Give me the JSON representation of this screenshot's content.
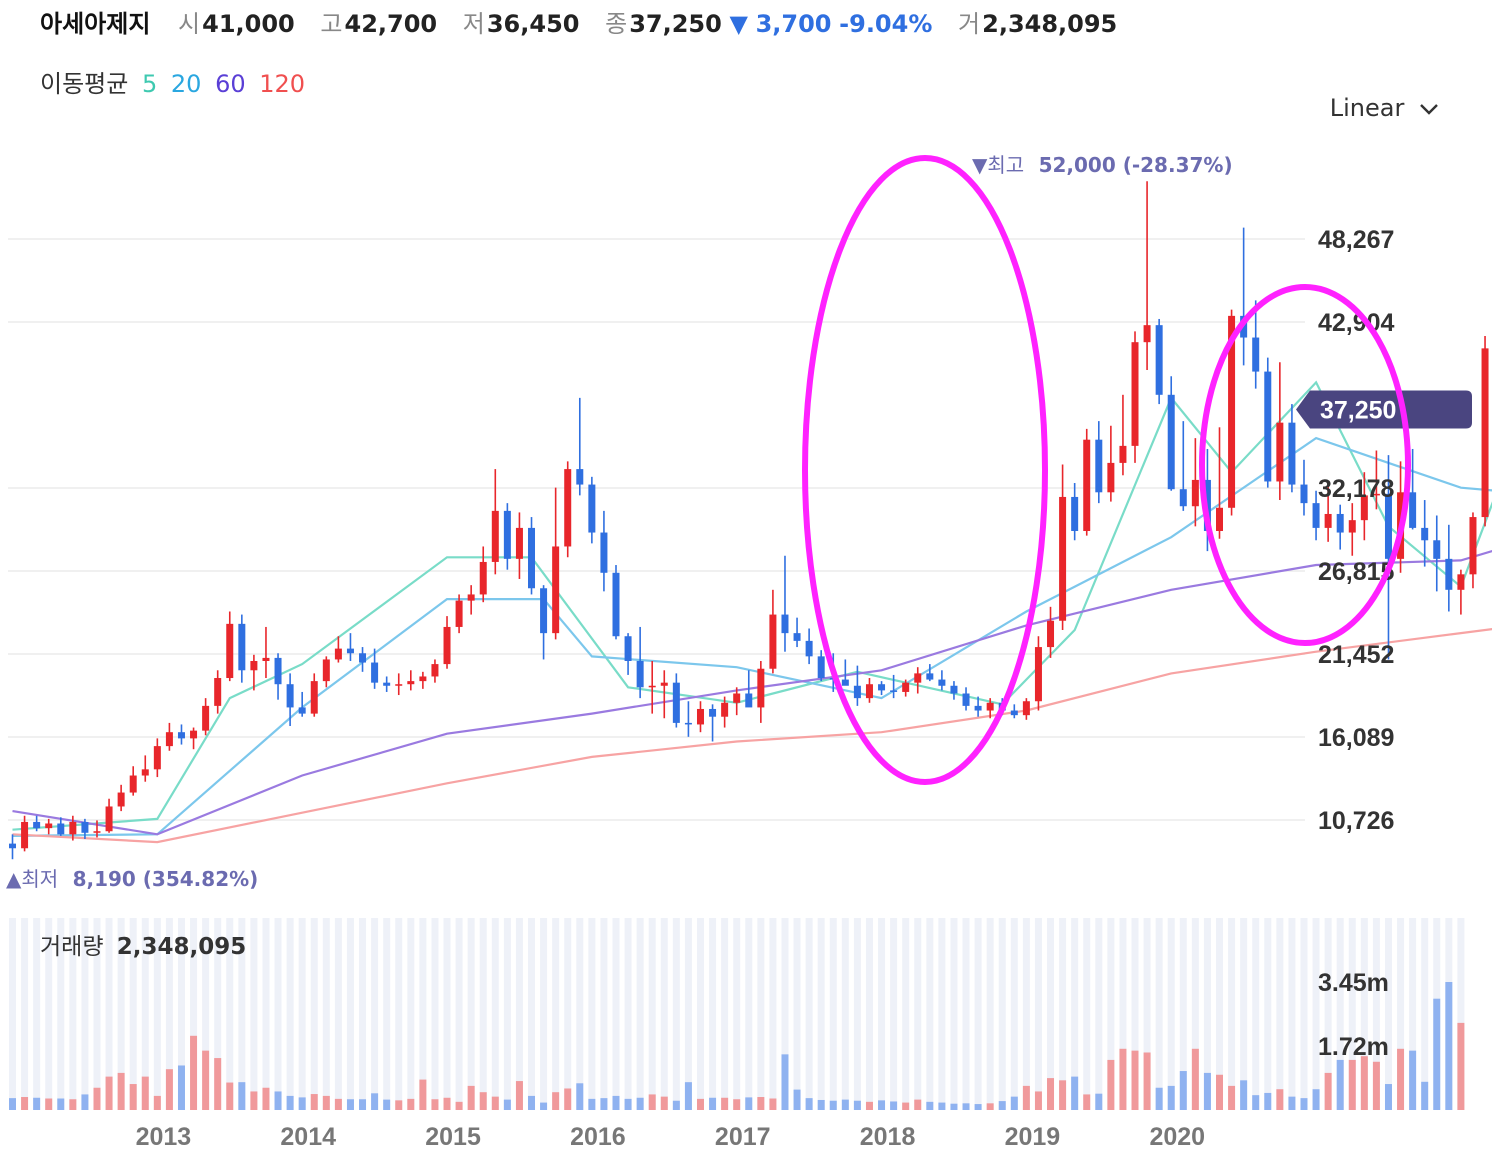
{
  "header": {
    "name": "아세아제지",
    "open_label": "시",
    "open": "41,000",
    "high_label": "고",
    "high": "42,700",
    "low_label": "저",
    "low": "36,450",
    "close_label": "종",
    "close": "37,250",
    "change_arrow": "▼",
    "change": "3,700",
    "change_pct": "-9.04%",
    "volume_label": "거",
    "volume": "2,348,095"
  },
  "moving_average": {
    "label": "이동평균",
    "periods": [
      "5",
      "20",
      "60",
      "120"
    ],
    "colors": [
      "#3ec9b0",
      "#2aa7e0",
      "#5a3fd6",
      "#f04f4f"
    ]
  },
  "scale_selector": {
    "label": "Linear",
    "icon": "chevron-down-icon"
  },
  "annotations": {
    "high_marker": {
      "arrow": "▼",
      "label": "최고",
      "value": "52,000 (-28.37%)"
    },
    "low_marker": {
      "arrow": "▲",
      "label": "최저",
      "value": "8,190 (354.82%)"
    },
    "current_price_tag": "37,250"
  },
  "volume_panel": {
    "label": "거래량",
    "value": "2,348,095"
  },
  "colors": {
    "up": "#e8262b",
    "down": "#2f6fe0",
    "vol_up": "#f0999b",
    "vol_down": "#8fb2f0",
    "highlight": "#ff22ff",
    "tag": "#4a4580"
  },
  "chart_data": {
    "type": "candlestick",
    "interval": "monthly",
    "y_ticks": [
      "48,267",
      "42,904",
      "37,250",
      "32,178",
      "26,815",
      "21,452",
      "16,089",
      "10,726"
    ],
    "y_tick_values": [
      48267,
      42904,
      32178,
      26815,
      21452,
      16089,
      10726
    ],
    "volume_ticks": [
      "3.45m",
      "1.72m"
    ],
    "volume_tick_values": [
      3450000,
      1720000
    ],
    "x_ticks": [
      "2013",
      "2014",
      "2015",
      "2016",
      "2017",
      "2018",
      "2019",
      "2020"
    ],
    "x_tick_positions": [
      12.5,
      24.5,
      36.5,
      48.5,
      60.5,
      72.5,
      84.5,
      96.5
    ],
    "candles": [
      [
        9200,
        9800,
        8190,
        8900
      ],
      [
        8900,
        11000,
        8700,
        10600
      ],
      [
        10600,
        11000,
        10000,
        10200
      ],
      [
        10200,
        10800,
        9800,
        10500
      ],
      [
        10500,
        10900,
        9700,
        9800
      ],
      [
        9800,
        11000,
        9400,
        10600
      ],
      [
        10600,
        10800,
        9500,
        9900
      ],
      [
        9900,
        10700,
        9600,
        10000
      ],
      [
        10000,
        12100,
        9900,
        11600
      ],
      [
        11600,
        13000,
        11300,
        12500
      ],
      [
        12500,
        14200,
        12300,
        13600
      ],
      [
        13600,
        14900,
        13200,
        14000
      ],
      [
        14000,
        16000,
        13500,
        15500
      ],
      [
        15500,
        17000,
        15200,
        16400
      ],
      [
        16400,
        16900,
        15600,
        16000
      ],
      [
        16000,
        16700,
        15300,
        16500
      ],
      [
        16500,
        18600,
        16200,
        18100
      ],
      [
        18100,
        20400,
        17600,
        19900
      ],
      [
        19900,
        24200,
        19700,
        23400
      ],
      [
        23400,
        24000,
        19600,
        20400
      ],
      [
        20400,
        21400,
        19100,
        21000
      ],
      [
        21000,
        23200,
        19900,
        21200
      ],
      [
        21200,
        21500,
        18500,
        19500
      ],
      [
        19500,
        20200,
        16800,
        18000
      ],
      [
        18000,
        19000,
        17400,
        17600
      ],
      [
        17600,
        20200,
        17400,
        19700
      ],
      [
        19700,
        21300,
        19300,
        21100
      ],
      [
        21100,
        22600,
        20900,
        21800
      ],
      [
        21800,
        22800,
        21000,
        21500
      ],
      [
        21500,
        21900,
        20300,
        20900
      ],
      [
        20900,
        21800,
        19200,
        19600
      ],
      [
        19600,
        20000,
        19000,
        19400
      ],
      [
        19400,
        20200,
        18800,
        19500
      ],
      [
        19500,
        20400,
        19100,
        19700
      ],
      [
        19700,
        20300,
        19200,
        20000
      ],
      [
        20000,
        21100,
        19600,
        20800
      ],
      [
        20800,
        23900,
        20500,
        23200
      ],
      [
        23200,
        25300,
        22800,
        24900
      ],
      [
        24900,
        25900,
        24000,
        25300
      ],
      [
        25300,
        28400,
        24800,
        27400
      ],
      [
        27400,
        33400,
        26600,
        30700
      ],
      [
        30700,
        31200,
        26900,
        27600
      ],
      [
        27600,
        30600,
        26300,
        29600
      ],
      [
        29600,
        30300,
        25300,
        25700
      ],
      [
        25700,
        25900,
        21100,
        22800
      ],
      [
        22800,
        32200,
        22400,
        28400
      ],
      [
        28400,
        33900,
        27700,
        33400
      ],
      [
        33400,
        38000,
        31700,
        32400
      ],
      [
        32400,
        32900,
        28600,
        29300
      ],
      [
        29300,
        30700,
        25500,
        26700
      ],
      [
        26700,
        27200,
        22400,
        22600
      ],
      [
        22600,
        22800,
        20100,
        21000
      ],
      [
        21000,
        23200,
        18600,
        19300
      ],
      [
        19300,
        21000,
        17600,
        19400
      ],
      [
        19400,
        20400,
        17300,
        19600
      ],
      [
        19600,
        20200,
        16700,
        17000
      ],
      [
        17000,
        18400,
        16100,
        16900
      ],
      [
        16900,
        18400,
        16400,
        17900
      ],
      [
        17900,
        18200,
        15800,
        17400
      ],
      [
        17400,
        18700,
        16700,
        18300
      ],
      [
        18300,
        19300,
        17500,
        18900
      ],
      [
        18900,
        20400,
        18100,
        18000
      ],
      [
        18000,
        21000,
        17000,
        20500
      ],
      [
        20500,
        25600,
        20200,
        24000
      ],
      [
        24000,
        27800,
        21600,
        22800
      ],
      [
        22800,
        23800,
        21900,
        22300
      ],
      [
        22300,
        23100,
        20800,
        21300
      ],
      [
        21300,
        21700,
        19700,
        19900
      ],
      [
        19900,
        21500,
        19000,
        19800
      ],
      [
        19800,
        21100,
        19600,
        19400
      ],
      [
        19400,
        20700,
        18100,
        18600
      ],
      [
        18600,
        19900,
        18300,
        19500
      ],
      [
        19500,
        19700,
        18800,
        19100
      ],
      [
        19100,
        20100,
        18600,
        19000
      ],
      [
        19000,
        19800,
        18700,
        19600
      ],
      [
        19600,
        20600,
        18900,
        20200
      ],
      [
        20200,
        20800,
        19700,
        19800
      ],
      [
        19800,
        20400,
        19100,
        19400
      ],
      [
        19400,
        19700,
        18500,
        18900
      ],
      [
        18900,
        19300,
        17800,
        18100
      ],
      [
        18100,
        18700,
        17400,
        17800
      ],
      [
        17800,
        18600,
        17300,
        18300
      ],
      [
        18300,
        18600,
        17500,
        17800
      ],
      [
        17800,
        18200,
        17300,
        17500
      ],
      [
        17500,
        18600,
        17200,
        18400
      ],
      [
        18400,
        22600,
        17800,
        21900
      ],
      [
        21900,
        24500,
        21200,
        23600
      ],
      [
        23600,
        33700,
        23000,
        31600
      ],
      [
        31600,
        32500,
        28800,
        29400
      ],
      [
        29400,
        36000,
        29100,
        35300
      ],
      [
        35300,
        36500,
        31200,
        31900
      ],
      [
        31900,
        36200,
        31300,
        33800
      ],
      [
        33800,
        38200,
        33000,
        34900
      ],
      [
        34900,
        42300,
        33800,
        41600
      ],
      [
        41600,
        52000,
        39800,
        42700
      ],
      [
        42700,
        43100,
        37600,
        38200
      ],
      [
        38200,
        39400,
        32000,
        32100
      ],
      [
        32100,
        36500,
        30700,
        31000
      ],
      [
        31000,
        35400,
        29700,
        32700
      ],
      [
        32700,
        34700,
        28100,
        29400
      ],
      [
        29400,
        36100,
        28900,
        30900
      ],
      [
        30900,
        43700,
        30400,
        43300
      ],
      [
        43300,
        49000,
        40100,
        41900
      ],
      [
        41900,
        44300,
        38600,
        39700
      ],
      [
        39700,
        40600,
        32200,
        32600
      ],
      [
        32600,
        40300,
        31400,
        36400
      ],
      [
        36400,
        37600,
        31900,
        32400
      ],
      [
        32400,
        34000,
        30400,
        31200
      ],
      [
        31200,
        32000,
        28800,
        29600
      ],
      [
        29600,
        32600,
        28700,
        30500
      ],
      [
        30500,
        31100,
        28200,
        29300
      ],
      [
        29300,
        31200,
        27800,
        30100
      ],
      [
        30100,
        33200,
        28800,
        31700
      ],
      [
        31700,
        34600,
        30800,
        31800
      ],
      [
        31800,
        34300,
        21100,
        27600
      ],
      [
        27600,
        33900,
        26700,
        31900
      ],
      [
        31900,
        34700,
        29500,
        29600
      ],
      [
        29600,
        31400,
        27100,
        28800
      ],
      [
        28800,
        30400,
        25500,
        27600
      ],
      [
        27600,
        29800,
        24200,
        25600
      ],
      [
        25600,
        26900,
        24000,
        26600
      ],
      [
        26600,
        30600,
        25700,
        30300
      ],
      [
        30300,
        42000,
        29700,
        41200
      ],
      [
        41000,
        42700,
        36450,
        37250
      ]
    ],
    "volumes": [
      320000,
      350000,
      330000,
      310000,
      310000,
      290000,
      420000,
      600000,
      900000,
      1000000,
      700000,
      900000,
      380000,
      1100000,
      1200000,
      2000000,
      1600000,
      1400000,
      740000,
      750000,
      500000,
      600000,
      500000,
      380000,
      340000,
      430000,
      380000,
      300000,
      290000,
      290000,
      450000,
      280000,
      260000,
      300000,
      820000,
      290000,
      330000,
      220000,
      650000,
      480000,
      360000,
      280000,
      780000,
      380000,
      200000,
      480000,
      580000,
      720000,
      300000,
      320000,
      380000,
      300000,
      330000,
      420000,
      360000,
      250000,
      750000,
      300000,
      330000,
      330000,
      290000,
      340000,
      350000,
      310000,
      1500000,
      550000,
      320000,
      270000,
      250000,
      280000,
      250000,
      220000,
      260000,
      230000,
      200000,
      280000,
      220000,
      200000,
      170000,
      180000,
      160000,
      180000,
      240000,
      360000,
      650000,
      500000,
      860000,
      800000,
      900000,
      420000,
      440000,
      1350000,
      1650000,
      1600000,
      1550000,
      600000,
      650000,
      1050000,
      1650000,
      1000000,
      950000,
      650000,
      800000,
      400000,
      460000,
      560000,
      360000,
      320000,
      560000,
      1000000,
      1350000,
      1350000,
      1450000,
      1300000,
      700000,
      1650000,
      1600000,
      760000,
      3000000,
      3450000,
      2348095
    ],
    "ma_lines": {
      "ma5": [
        [
          0,
          10100
        ],
        [
          12,
          10800
        ],
        [
          18,
          18600
        ],
        [
          24,
          20800
        ],
        [
          36,
          27700
        ],
        [
          43,
          27700
        ],
        [
          51,
          19300
        ],
        [
          60,
          18300
        ],
        [
          70,
          20300
        ],
        [
          82,
          18200
        ],
        [
          88,
          23000
        ],
        [
          96,
          38000
        ],
        [
          101,
          33200
        ],
        [
          108,
          39000
        ],
        [
          114,
          29700
        ],
        [
          120,
          25800
        ],
        [
          123,
          32000
        ]
      ],
      "ma20": [
        [
          0,
          9700
        ],
        [
          12,
          9800
        ],
        [
          24,
          18000
        ],
        [
          36,
          25000
        ],
        [
          44,
          25000
        ],
        [
          48,
          21300
        ],
        [
          60,
          20600
        ],
        [
          72,
          18600
        ],
        [
          84,
          24200
        ],
        [
          96,
          29000
        ],
        [
          108,
          35400
        ],
        [
          120,
          32200
        ],
        [
          123,
          32000
        ]
      ],
      "ma60": [
        [
          0,
          11300
        ],
        [
          12,
          9800
        ],
        [
          24,
          13600
        ],
        [
          36,
          16300
        ],
        [
          48,
          17600
        ],
        [
          60,
          19100
        ],
        [
          72,
          20400
        ],
        [
          84,
          23300
        ],
        [
          96,
          25600
        ],
        [
          108,
          27200
        ],
        [
          120,
          27500
        ],
        [
          123,
          28200
        ]
      ],
      "ma120": [
        [
          0,
          9800
        ],
        [
          12,
          9300
        ],
        [
          24,
          11200
        ],
        [
          36,
          13100
        ],
        [
          48,
          14800
        ],
        [
          60,
          15800
        ],
        [
          72,
          16400
        ],
        [
          84,
          17800
        ],
        [
          96,
          20200
        ],
        [
          108,
          21600
        ],
        [
          120,
          22800
        ],
        [
          123,
          23100
        ]
      ]
    },
    "highlight_ellipses": 2
  }
}
